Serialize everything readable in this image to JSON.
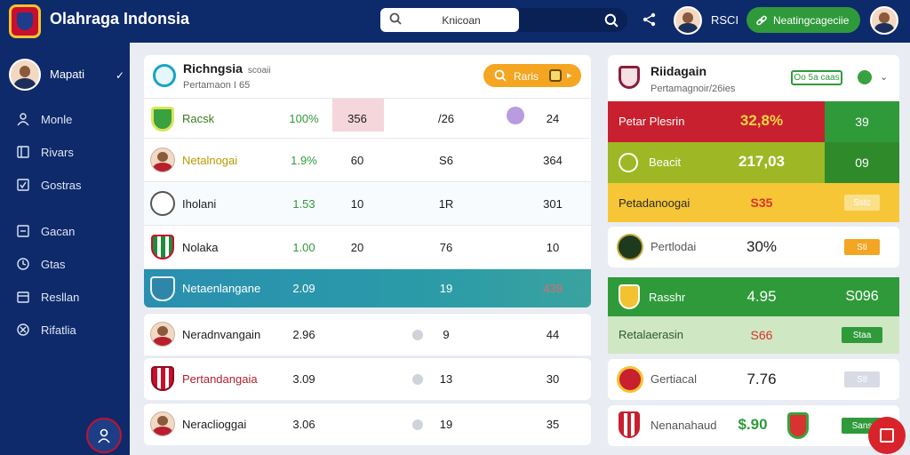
{
  "app": {
    "title": "Olahraga Indonsia"
  },
  "search": {
    "value": "Knicoan"
  },
  "top_user": {
    "name": "RSCI"
  },
  "top_button": {
    "label": "Neatingcageciie"
  },
  "sidebar": {
    "user_name": "Mapati",
    "items": [
      {
        "label": "Monle",
        "icon": "person-icon"
      },
      {
        "label": "Rivars",
        "icon": "book-icon"
      },
      {
        "label": "Gostras",
        "icon": "check-square-icon"
      },
      {
        "label": "Gacan",
        "icon": "document-icon"
      },
      {
        "label": "Gtas",
        "icon": "clock-icon"
      },
      {
        "label": "Resllan",
        "icon": "calendar-icon"
      },
      {
        "label": "Rifatlia",
        "icon": "cancel-icon"
      }
    ]
  },
  "main_panel": {
    "title": "Richngsia",
    "title_small": "scoaii",
    "subtitle": "Pertamaon I 65",
    "pill_label": "Raris",
    "rows": [
      {
        "name": "Racsk",
        "c1": "100%",
        "c2": "356",
        "c3": "/26",
        "c4": "24",
        "logo": "green-shield"
      },
      {
        "name": "Netalnogai",
        "c1": "1.9%",
        "c2": "60",
        "c3": "S6",
        "c4": "364",
        "logo": "player"
      },
      {
        "name": "Iholani",
        "c1": "1.53",
        "c2": "10",
        "c3": "1R",
        "c4": "301",
        "logo": "white-crest"
      },
      {
        "name": "Nolaka",
        "c1": "1.00",
        "c2": "20",
        "c3": "76",
        "c4": "10",
        "logo": "green-stripes"
      },
      {
        "name": "Netaenlangane",
        "c1": "2.09",
        "c2": "",
        "c3": "19",
        "c4": "439",
        "logo": "teal-crest"
      },
      {
        "name": "Neradnvangain",
        "c1": "2.96",
        "c2": "",
        "c3": "9",
        "c4": "44",
        "logo": "player"
      },
      {
        "name": "Pertandangaia",
        "c1": "3.09",
        "c2": "",
        "c3": "13",
        "c4": "30",
        "logo": "red-stripes"
      },
      {
        "name": "Neraclioggai",
        "c1": "3.06",
        "c2": "",
        "c3": "19",
        "c4": "35",
        "logo": "player"
      }
    ]
  },
  "right_panel": {
    "title": "Riidagain",
    "subtitle": "Pertamagnoir/26ies",
    "badge": "Oo 5a caas",
    "rows": [
      {
        "label": "Petar Plesrin",
        "value": "32,8%",
        "end": "39"
      },
      {
        "label": "Beacit",
        "value": "217,03",
        "end": "09"
      },
      {
        "label": "Petadanoogai",
        "value": "S35",
        "end": "Sstc"
      },
      {
        "label": "Pertlodai",
        "value": "30%",
        "end": "Sti"
      },
      {
        "label": "Rasshr",
        "value": "4.95",
        "end": "S096"
      },
      {
        "label": "Retalaerasin",
        "value": "S66",
        "end": "Staa"
      },
      {
        "label": "Gertiacal",
        "value": "7.76",
        "end": "Stl"
      },
      {
        "label": "Nenanahaud",
        "value": "$.90",
        "end": "Sans"
      }
    ]
  },
  "colors": {
    "nav": "#0d2a6b",
    "accent_green": "#2f9a3a",
    "accent_orange": "#f4a521",
    "accent_red": "#c8102e",
    "teal": "#2a8fb0"
  }
}
